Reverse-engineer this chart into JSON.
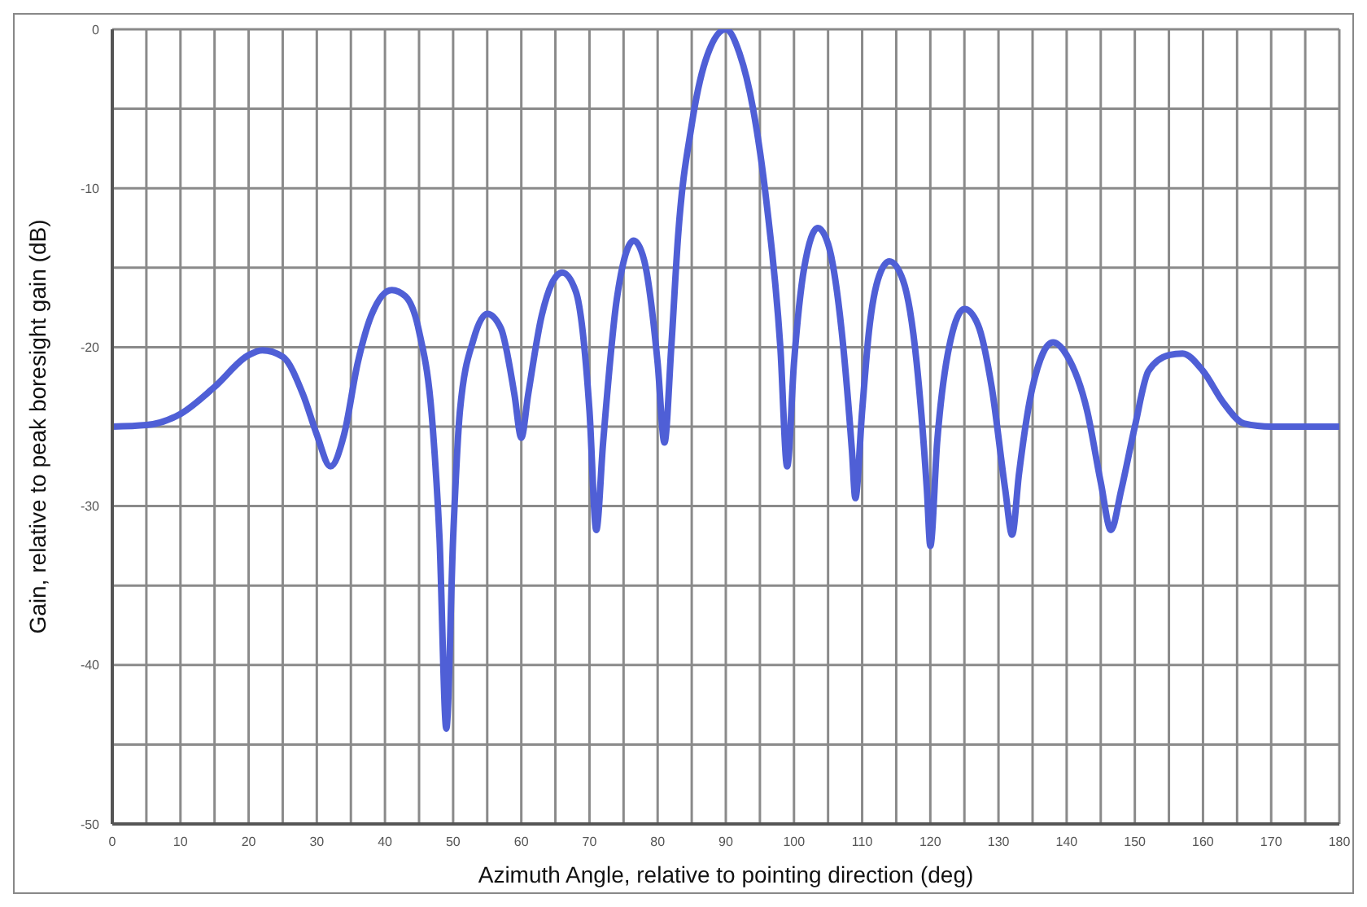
{
  "chart_data": {
    "type": "line",
    "xlabel": "Azimuth Angle, relative to pointing direction (deg)",
    "ylabel": "Gain, relative to peak boresight gain (dB)",
    "xlim": [
      0,
      180
    ],
    "ylim": [
      -50,
      0
    ],
    "xticks": [
      0,
      {
        "value": 5,
        "label": null
      },
      10,
      {
        "value": 15,
        "label": null
      },
      20,
      {
        "value": 25,
        "label": null
      },
      30,
      {
        "value": 35,
        "label": null
      },
      40,
      {
        "value": 45,
        "label": null
      },
      50,
      {
        "value": 55,
        "label": null
      },
      60,
      {
        "value": 65,
        "label": null
      },
      70,
      {
        "value": 75,
        "label": null
      },
      80,
      {
        "value": 85,
        "label": null
      },
      90,
      {
        "value": 95,
        "label": null
      },
      100,
      {
        "value": 105,
        "label": null
      },
      110,
      {
        "value": 115,
        "label": null
      },
      120,
      {
        "value": 125,
        "label": null
      },
      130,
      {
        "value": 135,
        "label": null
      },
      140,
      {
        "value": 145,
        "label": null
      },
      150,
      {
        "value": 155,
        "label": null
      },
      160,
      {
        "value": 165,
        "label": null
      },
      170,
      {
        "value": 175,
        "label": null
      },
      180
    ],
    "yticks": [
      -50,
      {
        "value": -45,
        "label": null
      },
      -40,
      {
        "value": -35,
        "label": null
      },
      -30,
      {
        "value": -25,
        "label": null
      },
      -20,
      {
        "value": -15,
        "label": null
      },
      -10,
      {
        "value": -5,
        "label": null
      },
      0
    ],
    "grid": true,
    "marker": "none",
    "line_style": "solid",
    "series": [
      {
        "color": "#4f5fd6",
        "x": [
          0,
          5,
          10,
          15,
          20,
          22,
          25,
          28,
          30,
          32,
          34,
          36,
          38,
          41,
          43,
          45,
          47,
          48,
          49,
          50,
          51,
          53,
          55,
          57,
          59,
          60,
          61,
          63,
          66,
          68,
          70,
          71,
          72,
          74,
          76.5,
          78,
          80,
          81,
          82,
          83,
          85,
          87,
          90,
          92,
          94,
          96,
          98,
          99,
          100,
          101.5,
          103.5,
          105,
          107,
          108.5,
          109,
          110,
          111,
          112.5,
          114,
          116,
          118,
          119.5,
          120,
          121,
          123,
          125,
          127,
          129,
          131,
          132,
          133,
          135,
          138,
          140,
          143,
          145,
          146.5,
          148,
          150,
          152,
          155,
          157,
          160,
          163,
          166,
          170,
          180
        ],
        "values": [
          -25,
          -24.9,
          -24.2,
          -22.5,
          -20.5,
          -20.2,
          -20.6,
          -23,
          -25.5,
          -27.5,
          -25.5,
          -21,
          -18,
          -16.4,
          -16.8,
          -19,
          -25,
          -32,
          -44,
          -32,
          -24,
          -19.5,
          -17.9,
          -18.8,
          -23,
          -25.7,
          -23,
          -18,
          -15.3,
          -16.5,
          -24,
          -31.5,
          -26,
          -17,
          -13.3,
          -14.5,
          -21,
          -26,
          -20,
          -13,
          -6,
          -2,
          0,
          -1.5,
          -5,
          -11,
          -20,
          -27.5,
          -21,
          -15,
          -12.5,
          -13.5,
          -19,
          -26.5,
          -29.5,
          -24,
          -19,
          -15.5,
          -14.6,
          -15.8,
          -21,
          -29,
          -32.5,
          -26,
          -19.5,
          -17.6,
          -18.6,
          -22.5,
          -29,
          -31.8,
          -28,
          -22.5,
          -19.7,
          -20.5,
          -24,
          -28.5,
          -31.5,
          -29,
          -25,
          -21.5,
          -20.5,
          -20.4,
          -21.5,
          -23.5,
          -24.8,
          -25,
          -25
        ]
      }
    ]
  }
}
